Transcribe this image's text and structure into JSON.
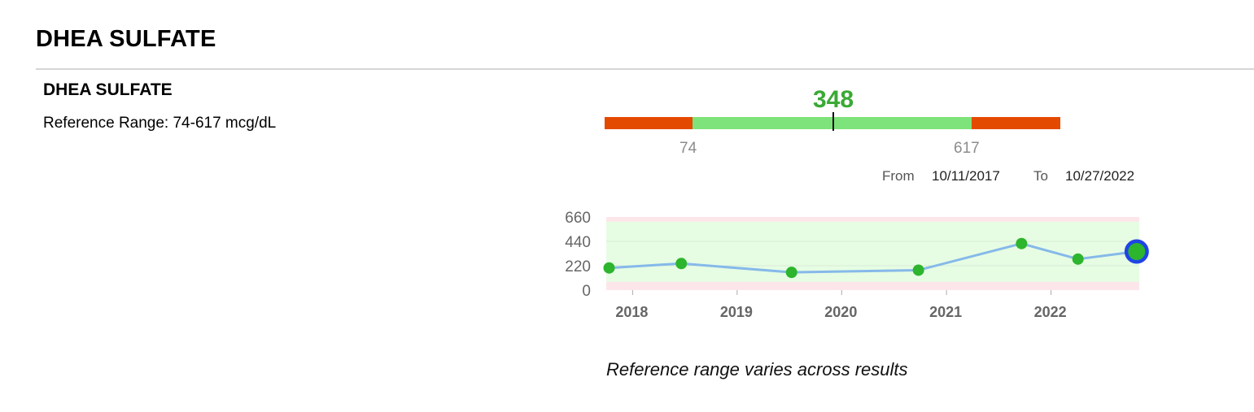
{
  "page": {
    "title": "DHEA SULFATE"
  },
  "test": {
    "name": "DHEA SULFATE",
    "reference_range_text": "Reference Range: 74-617 mcg/dL",
    "current_value": "348",
    "low": "74",
    "high": "617"
  },
  "date_range": {
    "from_label": "From",
    "from": "10/11/2017",
    "to_label": "To",
    "to": "10/27/2022"
  },
  "note": "Reference range varies across results",
  "colors": {
    "out_of_range": "#e34a00",
    "in_range": "#7ee37a",
    "value_text": "#3aa935",
    "point": "#2db52d",
    "line": "#86b9ea",
    "band_normal": "#e6fde3",
    "band_abnormal": "#fde6ea",
    "latest_ring": "#1f44e6"
  },
  "range_gauge": {
    "min": 0,
    "low": 74,
    "high": 617,
    "max": 800,
    "value": 348
  },
  "chart_data": {
    "type": "line",
    "title": "",
    "xlabel": "",
    "ylabel": "",
    "ylim": [
      0,
      660
    ],
    "yticks": [
      "660",
      "440",
      "220",
      "0"
    ],
    "xticks": [
      "2018",
      "2019",
      "2020",
      "2021",
      "2022"
    ],
    "reference_band": [
      74,
      617
    ],
    "grid": true,
    "series": [
      {
        "x": [
          "2017-10-11",
          "2018-06-20",
          "2019-07-10",
          "2020-09-25",
          "2021-09-20",
          "2022-04-05",
          "2022-10-27"
        ],
        "values": [
          200,
          240,
          160,
          180,
          420,
          280,
          348
        ],
        "highlight_last": true
      }
    ]
  }
}
